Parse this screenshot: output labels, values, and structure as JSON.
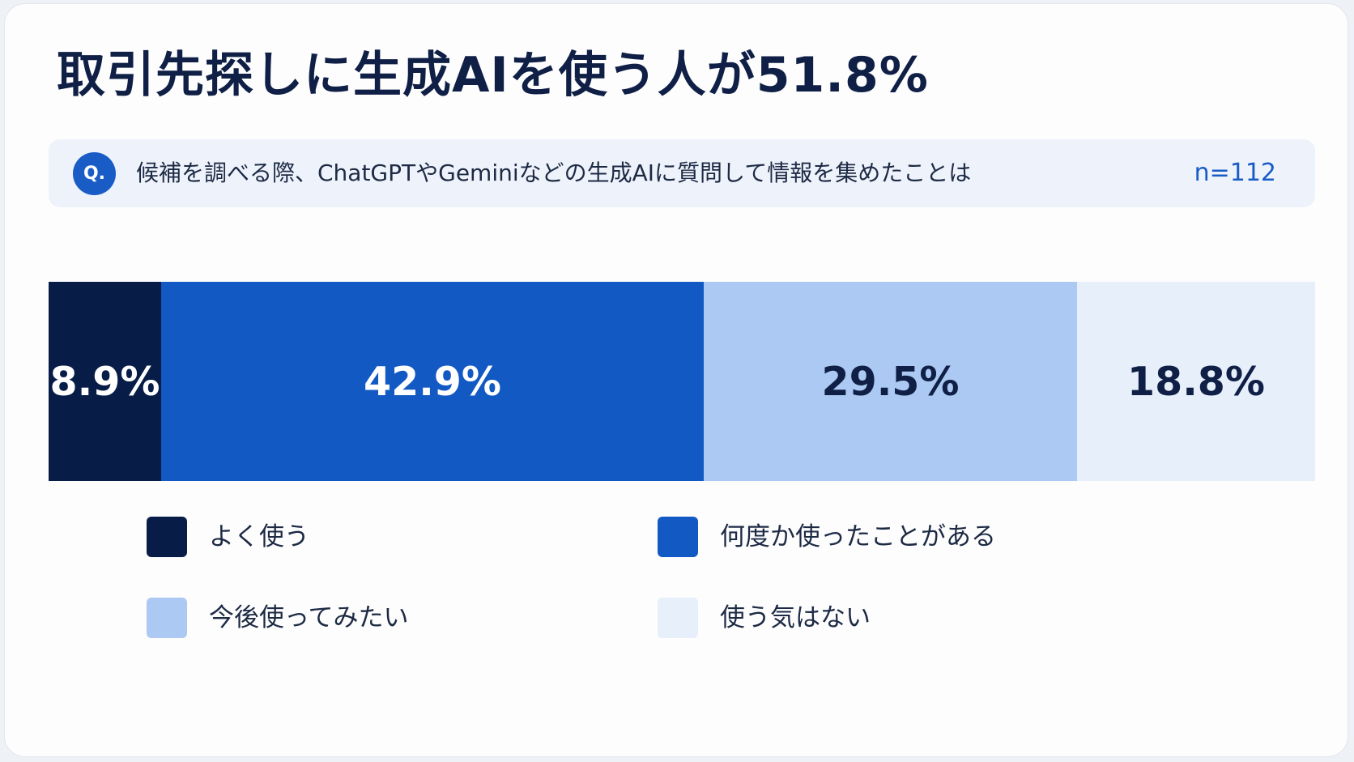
{
  "header": {
    "title": "取引先探しに生成AIを使う人が51.8%"
  },
  "question": {
    "badge": "Q.",
    "text": "候補を調べる際、ChatGPTやGeminiなどの生成AIに質問して情報を集めたことは",
    "sample_size": "n=112"
  },
  "chart_data": {
    "type": "bar",
    "orientation": "horizontal",
    "stacked": true,
    "title": "取引先探しに生成AIを使う人が51.8%",
    "xlabel": "",
    "ylabel": "",
    "unit": "%",
    "xlim": [
      0,
      100.1
    ],
    "categories": [
      ""
    ],
    "series": [
      {
        "name": "よく使う",
        "values": [
          8.9
        ],
        "label": "8.9%",
        "color": "#071c47",
        "label_color": "#ffffff"
      },
      {
        "name": "何度か使ったことがある",
        "values": [
          42.9
        ],
        "label": "42.9%",
        "color": "#1259c3",
        "label_color": "#ffffff"
      },
      {
        "name": "今後使ってみたい",
        "values": [
          29.5
        ],
        "label": "29.5%",
        "color": "#abc9f2",
        "label_color": "#0f1f45"
      },
      {
        "name": "使う気はない",
        "values": [
          18.8
        ],
        "label": "18.8%",
        "color": "#e7effb",
        "label_color": "#0f1f45"
      }
    ],
    "legend_position": "bottom",
    "grid": false
  }
}
